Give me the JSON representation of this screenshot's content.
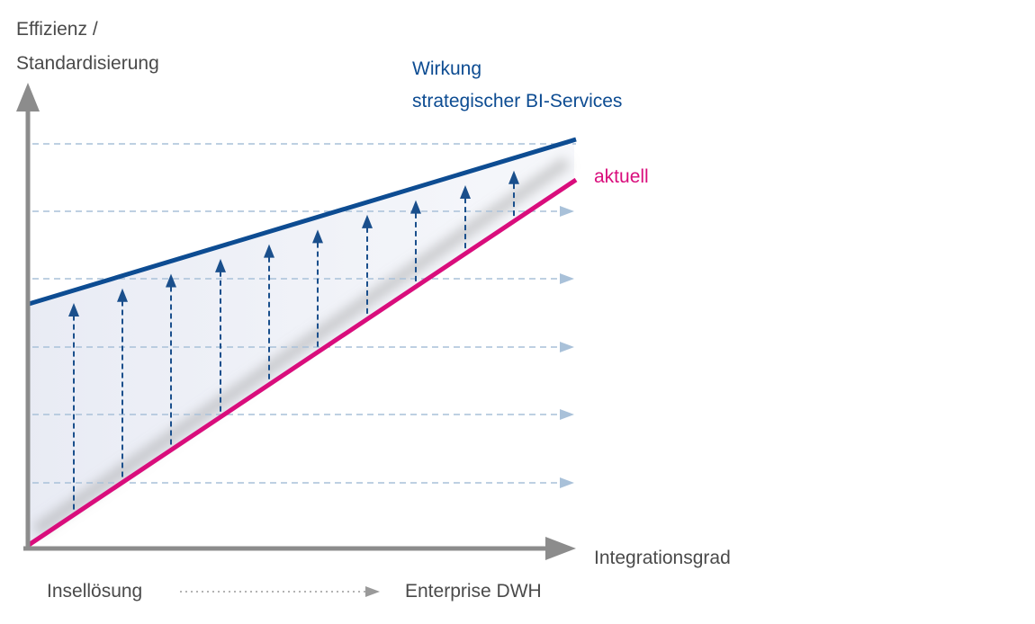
{
  "y_axis_label_line1": "Effizienz /",
  "y_axis_label_line2": "Standardisierung",
  "x_axis_label": "Integrationsgrad",
  "target_label_line1": "Wirkung",
  "target_label_line2": "strategischer BI-Services",
  "current_label": "aktuell",
  "scale_start": "Insellösung",
  "scale_end": "Enterprise DWH",
  "colors": {
    "axis": "#8c8c8c",
    "target_line": "#0d4c92",
    "current_line": "#d90d7c",
    "arrows": "#1a4f8c",
    "grid_dashes": "#a9c1d9",
    "band_fill": "#dfe4f0",
    "text": "#4a4a4a"
  }
}
